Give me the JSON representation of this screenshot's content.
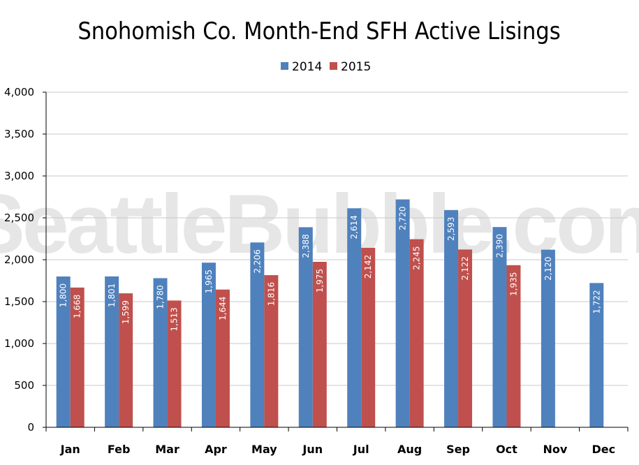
{
  "watermark": "SeattleBubble.com",
  "colors": {
    "s2014": "#4F81BD",
    "s2015": "#C0504D",
    "grid": "#c8c8c8",
    "axis": "#000000"
  },
  "chart_data": {
    "type": "bar",
    "title": "Snohomish Co. Month-End SFH Active Lisings",
    "categories": [
      "Jan",
      "Feb",
      "Mar",
      "Apr",
      "May",
      "Jun",
      "Jul",
      "Aug",
      "Sep",
      "Oct",
      "Nov",
      "Dec"
    ],
    "series": [
      {
        "name": "2014",
        "values": [
          1800,
          1801,
          1780,
          1965,
          2206,
          2388,
          2614,
          2720,
          2593,
          2390,
          2120,
          1722
        ],
        "labels": [
          "1,800",
          "1,801",
          "1,780",
          "1,965",
          "2,206",
          "2,388",
          "2,614",
          "2,720",
          "2,593",
          "2,390",
          "2,120",
          "1,722"
        ]
      },
      {
        "name": "2015",
        "values": [
          1668,
          1599,
          1513,
          1644,
          1816,
          1975,
          2142,
          2245,
          2122,
          1935,
          null,
          null
        ],
        "labels": [
          "1,668",
          "1,599",
          "1,513",
          "1,644",
          "1,816",
          "1,975",
          "2,142",
          "2,245",
          "2,122",
          "1,935",
          null,
          null
        ]
      }
    ],
    "ylim": [
      0,
      4000
    ],
    "yticks": [
      0,
      500,
      1000,
      1500,
      2000,
      2500,
      3000,
      3500,
      4000
    ],
    "ytick_labels": [
      "0",
      "500",
      "1,000",
      "1,500",
      "2,000",
      "2,500",
      "3,000",
      "3,500",
      "4,000"
    ],
    "legend_position": "top-center",
    "grid": true
  }
}
